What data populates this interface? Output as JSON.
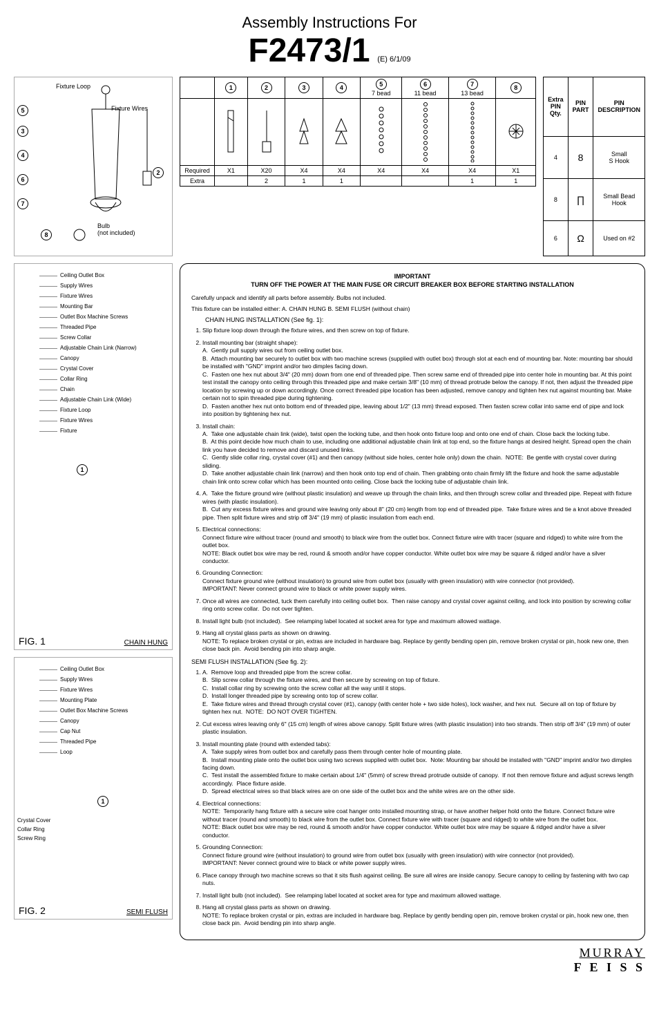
{
  "header": {
    "title": "Assembly Instructions For",
    "product_code": "F2473/1",
    "revision": "(E)  6/1/09"
  },
  "fixture_diagram": {
    "labels": {
      "n5": "5",
      "n3": "3",
      "n4": "4",
      "n6": "6",
      "n7": "7",
      "n8": "8",
      "n2": "2",
      "fixture_loop": "Fixture Loop",
      "fixture_wires": "Fixture Wires",
      "bulb": "Bulb\n(not included)"
    }
  },
  "parts_table": {
    "headers": [
      "1",
      "2",
      "3",
      "4",
      "5",
      "6",
      "7",
      "8"
    ],
    "sublabels": [
      "",
      "",
      "",
      "",
      "7 bead",
      "11 bead",
      "13 bead",
      ""
    ],
    "required_label": "Required",
    "extra_label": "Extra",
    "required": [
      "X1",
      "X20",
      "X4",
      "X4",
      "X4",
      "X4",
      "X4",
      "X1"
    ],
    "extra": [
      "",
      "2",
      "1",
      "1",
      "",
      "",
      "1",
      "1"
    ]
  },
  "extra_pin_table": {
    "head": {
      "c1": "Extra\nPIN\nQty.",
      "c2": "PIN\nPART",
      "c3": "PIN\nDESCRIPTION"
    },
    "rows": [
      {
        "qty": "4",
        "partGlyph": "8",
        "desc": "Small\nS Hook"
      },
      {
        "qty": "8",
        "partGlyph": "∏",
        "desc": "Small Bead\nHook"
      },
      {
        "qty": "6",
        "partGlyph": "Ω",
        "desc": "Used on #2"
      }
    ]
  },
  "fig1": {
    "title": "FIG. 1",
    "subtitle": "CHAIN HUNG",
    "items": [
      "Ceiling Outlet Box",
      "Supply Wires",
      "Fixture Wires",
      "Mounting Bar",
      "Outlet Box Machine Screws",
      "Threaded Pipe",
      "Screw Collar",
      "Adjustable Chain Link (Narrow)",
      "Canopy",
      "Crystal Cover",
      "Collar Ring",
      "Chain",
      "Adjustable Chain Link (Wide)",
      "Fixture Loop",
      "Fixture Wires",
      "Fixture"
    ],
    "badge": "1"
  },
  "fig2": {
    "title": "FIG. 2",
    "subtitle": "SEMI FLUSH",
    "items": [
      "Ceiling Outlet Box",
      "Supply Wires",
      "Fixture Wires",
      "Mounting Plate",
      "Outlet Box Machine Screws",
      "Canopy",
      "Cap Nut",
      "Threaded Pipe",
      "Loop"
    ],
    "left_labels": [
      "Crystal Cover",
      "Collar Ring",
      "Screw Ring"
    ],
    "badge": "1"
  },
  "instructions": {
    "important": "IMPORTANT",
    "important_sub": "TURN OFF THE POWER AT THE MAIN FUSE OR CIRCUIT BREAKER BOX BEFORE STARTING INSTALLATION",
    "intro1": "Carefully unpack and identify all parts before assembly.  Bulbs not included.",
    "intro2": "This fixture can be installed either:   A.  CHAIN HUNG     B.  SEMI FLUSH (without chain)",
    "chain_head": "CHAIN HUNG INSTALLATION   (See fig. 1):",
    "chain_steps": [
      "Slip fixture loop down through the fixture wires, and then screw on top of fixture.",
      "Install mounting bar (straight shape):\nA.  Gently pull supply wires out from ceiling outlet box.\nB.  Attach mounting bar securely to outlet box with two machine screws (supplied with outlet box) through slot at each end of mounting bar. Note: mounting bar should be installed with \"GND\" imprint and/or two dimples facing down.\nC.  Fasten one hex nut about 3/4\" (20 mm) down from one end of threaded pipe. Then screw same end of threaded pipe into center hole in mounting bar. At this point test install the canopy onto ceiling through this threaded pipe and make certain 3/8\" (10 mm) of thread protrude below the canopy. If not, then adjust the threaded pipe location by screwing up or down accordingly. Once correct threaded pipe location has been adjusted, remove canopy and tighten hex nut against mounting bar. Make certain not to spin threaded pipe during tightening.\nD.  Fasten another hex nut onto bottom end of threaded pipe, leaving about 1/2\" (13 mm) thread exposed. Then fasten screw collar into same end of pipe and lock into position by tightening hex nut.",
      "Install chain:\nA.  Take one adjustable chain link (wide), twist open the locking tube, and then hook onto fixture loop and onto one end of chain. Close back the locking tube.\nB.  At this point decide how much chain to use, including one additional adjustable chain link at top end, so the fixture hangs at desired height. Spread open the chain link you have decided to remove and discard unused links.\nC.  Gently slide collar ring, crystal cover (#1) and then canopy (without side holes, center hole only) down the chain.  NOTE:  Be gentle with crystal cover during sliding.\nD.  Take another adjustable chain link (narrow) and then hook onto top end of chain. Then grabbing onto chain firmly lift the fixture and hook the same adjustable chain link onto screw collar which has been mounted onto ceiling. Close back the locking tube of adjustable chain link.",
      "A.  Take the fixture ground wire (without plastic insulation) and weave up through the chain links, and then through screw collar and threaded pipe. Repeat with fixture wires (with plastic insulation).\nB.  Cut any excess fixture wires and ground wire leaving only about 8\" (20 cm) length from top end of threaded pipe.  Take fixture wires and tie a knot above threaded pipe. Then split fixture wires and strip off 3/4\" (19 mm) of plastic insulation from each end.",
      "Electrical connections:\nConnect fixture wire without tracer (round and smooth) to black wire from the outlet box. Connect fixture wire with tracer (square and ridged) to white wire from the outlet box.\nNOTE: Black outlet box wire may be red, round & smooth and/or have copper conductor. White outlet box wire may be square & ridged and/or have a silver conductor.",
      "Grounding Connection:\nConnect fixture ground wire (without insulation) to ground wire from outlet box (usually with green insulation) with wire connector (not provided).\nIMPORTANT: Never connect ground wire to black or white power supply wires.",
      "Once all wires are connected, tuck them carefully into ceiling outlet box.  Then raise canopy and crystal cover against ceiling, and lock into position by screwing collar ring onto screw collar.  Do not over tighten.",
      "Install light bulb (not included).  See relamping label located at socket area for type and maximum allowed wattage.",
      "Hang all crystal glass parts as shown on drawing.\nNOTE: To replace broken crystal or pin, extras are included in hardware bag. Replace by gently bending open pin, remove broken crystal or pin, hook new one, then close back pin.  Avoid bending pin into sharp angle."
    ],
    "semi_head": "SEMI FLUSH INSTALLATION   (See fig. 2):",
    "semi_steps": [
      "A.  Remove loop and threaded pipe from the screw collar.\nB.  Slip screw collar through the fixture wires, and then secure by screwing on top of fixture.\nC.  Install collar ring by screwing onto the screw collar all the way until it stops.\nD.  Install longer threaded pipe by screwing onto top of screw collar.\nE.  Take fixture wires and thread through crystal cover (#1), canopy (with center hole + two side holes), lock washer, and hex nut.  Secure all on top of fixture by tighten hex nut.  NOTE:  DO NOT OVER TIGHTEN.",
      "Cut excess wires leaving only 6\" (15 cm) length of wires above canopy. Split fixture wires (with plastic insulation) into two strands. Then strip off 3/4\" (19 mm) of outer plastic insulation.",
      "Install mounting plate (round with extended tabs):\nA.  Take supply wires from outlet box and carefully pass them through center hole of mounting plate.\nB.  Install mounting plate onto the outlet box using two screws supplied with outlet box.  Note: Mounting bar should be installed with \"GND\" imprint and/or two dimples facing down.\nC.  Test install the assembled fixture to make certain about 1/4\" (5mm) of screw thread protrude outside of canopy.  If not then remove fixture and adjust screws length accordingly.  Place fixture aside.\nD.  Spread electrical wires so that black wires are on one side of the outlet box and the white wires are on the other side.",
      "Electrical connections:\nNOTE:  Temporarily hang fixture with a secure wire coat hanger onto installed mounting strap, or have another helper hold onto the fixture. Connect fixture wire without tracer (round and smooth) to black wire from the outlet box. Connect fixture wire with tracer (square and ridged) to white wire from the outlet box.\nNOTE: Black outlet box wire may be red, round & smooth and/or have copper conductor. White outlet box wire may be square & ridged and/or have a silver conductor.",
      "Grounding Connection:\nConnect fixture ground wire (without insulation) to ground wire from outlet box (usually with green insulation) with wire connector (not provided).\nIMPORTANT: Never connect ground wire to black or white power supply wires.",
      "Place canopy through two machine screws so that it sits flush against ceiling. Be sure all wires are inside canopy. Secure canopy to ceiling by fastening with two cap nuts.",
      "Install light bulb (not included).  See relamping label located at socket area for type and maximum allowed wattage.",
      "Hang all crystal glass parts as shown on drawing.\nNOTE: To replace broken crystal or pin, extras are included in hardware bag. Replace by gently bending open pin, remove broken crystal or pin, hook new one, then close back pin.  Avoid bending pin into sharp angle."
    ]
  },
  "footer": {
    "line1": "MURRAY",
    "line2": "F E I S S"
  }
}
